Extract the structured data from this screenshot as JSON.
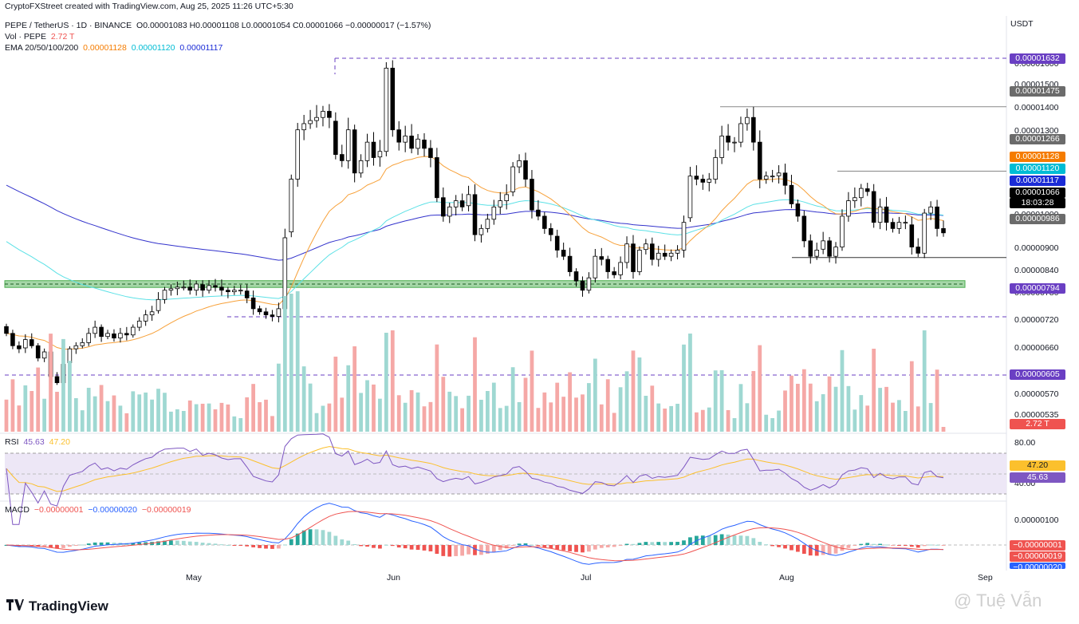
{
  "credit": "CryptoFXStreet created with TradingView.com, Aug 25, 2025 11:26 UTC+5:30",
  "header": {
    "symbol": "PEPE / TetherUS · 1D · BINANCE",
    "ohlc": "O0.00001083 H0.00001108 L0.00001054 C0.00001066 −0.00000017 (−1.57%)",
    "vol_label": "Vol · PEPE",
    "vol_value": "2.72 T",
    "ema_label": "EMA 20/50/100/200",
    "ema20": "0.00001128",
    "ema50": "0.00001120",
    "ema100": "0.00001117",
    "currency": "USDT"
  },
  "price_axis": {
    "ticks": [
      "0.00001600",
      "0.00001500",
      "0.00001400",
      "0.00001300",
      "0.00001200",
      "0.00001000",
      "0.00000900",
      "0.00000840",
      "0.00000780",
      "0.00000720",
      "0.00000660",
      "0.00000570",
      "0.00000535"
    ],
    "tags": [
      {
        "text": "0.00001632",
        "color": "#6a3fc3"
      },
      {
        "text": "0.00001475",
        "color": "#6b6b6b"
      },
      {
        "text": "0.00001266",
        "color": "#6b6b6b"
      },
      {
        "text": "0.00001128",
        "color": "#f57c00"
      },
      {
        "text": "0.00001120",
        "color": "#00bcd4"
      },
      {
        "text": "0.00001117",
        "color": "#1a2bd6"
      },
      {
        "text": "0.00001066",
        "color": "#000000"
      },
      {
        "text": "18:03:28",
        "color": "#000000"
      },
      {
        "text": "0.00000986",
        "color": "#6b6b6b"
      },
      {
        "text": "0.00000794",
        "color": "#6a3fc3"
      },
      {
        "text": "0.00000605",
        "color": "#6a3fc3"
      },
      {
        "text": "2.72 T",
        "color": "#ef5350"
      }
    ]
  },
  "rsi": {
    "label": "RSI",
    "value": "45.63",
    "ma_value": "47.20",
    "ticks": [
      "80.00",
      "40.00"
    ],
    "tags": [
      {
        "text": "47.20",
        "color": "#fbc02d"
      },
      {
        "text": "45.63",
        "color": "#7e57c2"
      }
    ]
  },
  "macd": {
    "label": "MACD",
    "hist": "−0.00000001",
    "macd": "−0.00000020",
    "signal": "−0.00000019",
    "ticks": [
      "0.00000100"
    ],
    "tags": [
      {
        "text": "−0.00000001",
        "color": "#ef5350"
      },
      {
        "text": "−0.00000019",
        "color": "#ef5350"
      },
      {
        "text": "−0.00000020",
        "color": "#2962ff"
      }
    ]
  },
  "time_axis": [
    "May",
    "Jun",
    "Jul",
    "Aug",
    "Sep"
  ],
  "brand": "TradingView",
  "watermark": "@ Tuệ Vẫn",
  "chart_data": {
    "type": "candlestick",
    "title": "PEPE / TetherUS · 1D · BINANCE",
    "date_range": [
      "2025-04-01",
      "2025-08-25"
    ],
    "ohlc_last": {
      "open": 1.083e-05,
      "high": 1.108e-05,
      "low": 1.054e-05,
      "close": 1.066e-05
    },
    "close": [
      7.4e-06,
      7e-06,
      6.9e-06,
      7.2e-06,
      7e-06,
      6.6e-06,
      6.8e-06,
      6e-06,
      5.8e-06,
      6.4e-06,
      6.9e-06,
      7e-06,
      7.1e-06,
      7.4e-06,
      7.6e-06,
      7.3e-06,
      7.4e-06,
      7.25e-06,
      7.4e-06,
      7.35e-06,
      7.6e-06,
      7.8e-06,
      8e-06,
      8.1e-06,
      8.5e-06,
      8.8e-06,
      8.85e-06,
      8.9e-06,
      8.9e-06,
      8.8e-06,
      9e-06,
      8.8e-06,
      8.95e-06,
      8.9e-06,
      8.8e-06,
      8.75e-06,
      8.8e-06,
      8.8e-06,
      8.55e-06,
      8.2e-06,
      8.1e-06,
      8e-06,
      7.95e-06,
      8.2e-06,
      1.05e-05,
      1.24e-05,
      1.4e-05,
      1.42e-05,
      1.43e-05,
      1.44e-05,
      1.46e-05,
      1.44e-05,
      1.32e-05,
      1.3e-05,
      1.4e-05,
      1.26e-05,
      1.3e-05,
      1.36e-05,
      1.31e-05,
      1.33e-05,
      1.6e-05,
      1.4e-05,
      1.36e-05,
      1.38e-05,
      1.34e-05,
      1.37e-05,
      1.34e-05,
      1.31e-05,
      1.18e-05,
      1.12e-05,
      1.15e-05,
      1.17e-05,
      1.15e-05,
      1.19e-05,
      1.06e-05,
      1.08e-05,
      1.11e-05,
      1.15e-05,
      1.17e-05,
      1.19e-05,
      1.28e-05,
      1.3e-05,
      1.24e-05,
      1.14e-05,
      1.12e-05,
      1.08e-05,
      1.06e-05,
      1.01e-05,
      9.9e-06,
      9.4e-06,
      9.1e-06,
      8.8e-06,
      9.2e-06,
      9.9e-06,
      9.8e-06,
      9.4e-06,
      9.3e-06,
      9.7e-06,
      1.03e-05,
      9.4e-06,
      1.01e-05,
      1.03e-05,
      9.8e-06,
      1e-05,
      9.9e-06,
      1e-05,
      1.01e-05,
      1.1e-05,
      1.25e-05,
      1.24e-05,
      1.23e-05,
      1.24e-05,
      1.31e-05,
      1.38e-05,
      1.36e-05,
      1.36e-05,
      1.42e-05,
      1.44e-05,
      1.36e-05,
      1.24e-05,
      1.25e-05,
      1.25e-05,
      1.26e-05,
      1.22e-05,
      1.16e-05,
      1.12e-05,
      1.04e-05,
      9.9e-06,
      1.01e-05,
      1.04e-05,
      9.9e-06,
      1.02e-05,
      1.12e-05,
      1.17e-05,
      1.18e-05,
      1.21e-05,
      1.2e-05,
      1.1e-05,
      1.15e-05,
      1.1e-05,
      1.08e-05,
      1.1e-05,
      1.1e-05,
      1.02e-05,
      1e-05,
      1.13e-05,
      1.15e-05,
      1.08e-05,
      1.066e-05
    ],
    "key_levels": [
      1.632e-05,
      1.475e-05,
      1.266e-05,
      9.86e-06,
      9e-06,
      7.94e-06,
      6.05e-06
    ],
    "ema": [
      {
        "name": "EMA 20",
        "last": 1.128e-05
      },
      {
        "name": "EMA 50",
        "last": 1.12e-05
      },
      {
        "name": "EMA 100",
        "last": 1.117e-05
      }
    ],
    "volume_last": "2.72 T",
    "rsi_last": 45.63,
    "rsi_ma_last": 47.2,
    "rsi_bands": [
      70,
      30
    ],
    "macd_last": {
      "histogram": -1e-08,
      "macd": -2e-07,
      "signal": -1.9e-07
    },
    "support_zone": [
      8.9e-06,
      9.1e-06
    ]
  },
  "colors": {
    "up": "#26a69a",
    "down": "#ef5350",
    "up_vol": "#9fd8d2",
    "down_vol": "#f5a8a6",
    "candle_up_fill": "#ffffff",
    "candle_down_fill": "#000000",
    "ema20": "#f7a13a",
    "ema50": "#5ce1e6",
    "ema100": "#3333cc",
    "level": "#6a3fc3",
    "rsi_line": "#7e57c2",
    "rsi_ma": "#fbc02d",
    "macd_line": "#2962ff",
    "signal_line": "#ef5350",
    "zone": "#4caf50"
  }
}
